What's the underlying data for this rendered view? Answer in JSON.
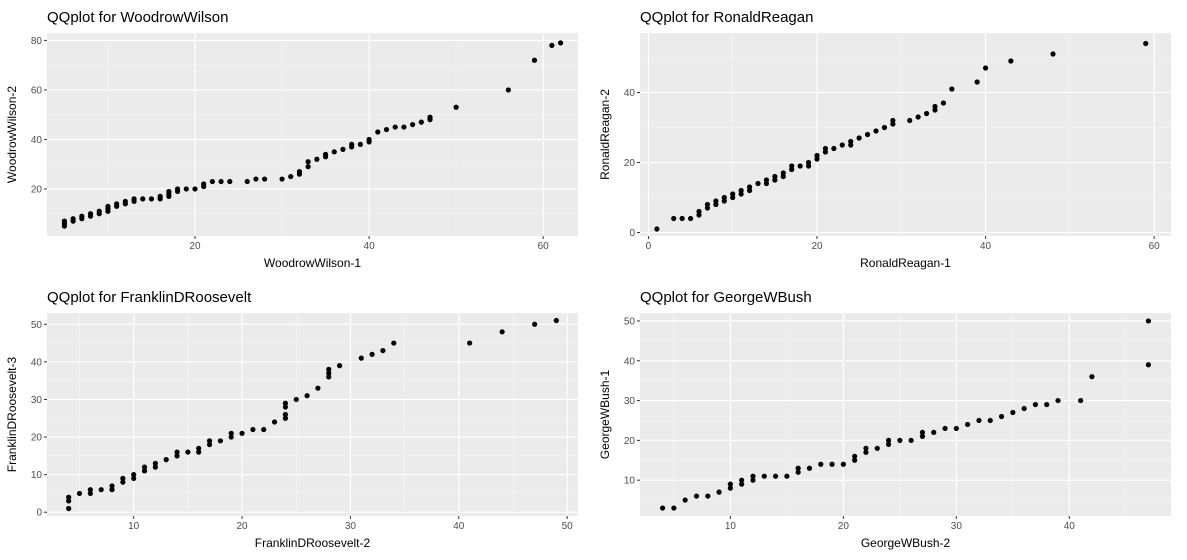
{
  "chart_data": [
    {
      "type": "scatter",
      "title": "QQplot for WoodrowWilson",
      "xlabel": "WoodrowWilson-1",
      "ylabel": "WoodrowWilson-2",
      "xlim": [
        3,
        64
      ],
      "ylim": [
        1,
        83
      ],
      "xticks": [
        20,
        40,
        60
      ],
      "yticks": [
        20,
        40,
        60,
        80
      ],
      "grid": true,
      "points": [
        [
          5,
          5
        ],
        [
          5,
          6
        ],
        [
          5,
          7
        ],
        [
          6,
          7
        ],
        [
          6,
          8
        ],
        [
          7,
          8
        ],
        [
          7,
          9
        ],
        [
          8,
          9
        ],
        [
          8,
          10
        ],
        [
          9,
          10
        ],
        [
          9,
          11
        ],
        [
          10,
          11
        ],
        [
          10,
          12
        ],
        [
          10,
          13
        ],
        [
          11,
          13
        ],
        [
          11,
          14
        ],
        [
          12,
          14
        ],
        [
          12,
          15
        ],
        [
          13,
          15
        ],
        [
          13,
          16
        ],
        [
          14,
          16
        ],
        [
          15,
          16
        ],
        [
          16,
          16
        ],
        [
          16,
          17
        ],
        [
          17,
          17
        ],
        [
          17,
          18
        ],
        [
          17,
          19
        ],
        [
          18,
          19
        ],
        [
          18,
          20
        ],
        [
          19,
          20
        ],
        [
          20,
          20
        ],
        [
          21,
          21
        ],
        [
          21,
          22
        ],
        [
          22,
          23
        ],
        [
          23,
          23
        ],
        [
          24,
          23
        ],
        [
          26,
          23
        ],
        [
          27,
          24
        ],
        [
          28,
          24
        ],
        [
          30,
          24
        ],
        [
          31,
          25
        ],
        [
          32,
          26
        ],
        [
          32,
          27
        ],
        [
          33,
          29
        ],
        [
          33,
          31
        ],
        [
          34,
          32
        ],
        [
          35,
          33
        ],
        [
          35,
          34
        ],
        [
          36,
          35
        ],
        [
          37,
          36
        ],
        [
          38,
          37
        ],
        [
          38,
          38
        ],
        [
          39,
          38
        ],
        [
          40,
          39
        ],
        [
          40,
          40
        ],
        [
          41,
          43
        ],
        [
          42,
          44
        ],
        [
          43,
          45
        ],
        [
          44,
          45
        ],
        [
          45,
          46
        ],
        [
          46,
          47
        ],
        [
          47,
          48
        ],
        [
          47,
          49
        ],
        [
          50,
          53
        ],
        [
          56,
          60
        ],
        [
          59,
          72
        ],
        [
          61,
          78
        ],
        [
          62,
          79
        ]
      ]
    },
    {
      "type": "scatter",
      "title": "QQplot for RonaldReagan",
      "xlabel": "RonaldReagan-1",
      "ylabel": "RonaldReagan-2",
      "xlim": [
        -1,
        62
      ],
      "ylim": [
        -1,
        57
      ],
      "xticks": [
        0,
        20,
        40,
        60
      ],
      "yticks": [
        0,
        20,
        40
      ],
      "grid": true,
      "points": [
        [
          1,
          1
        ],
        [
          3,
          4
        ],
        [
          4,
          4
        ],
        [
          5,
          4
        ],
        [
          6,
          5
        ],
        [
          6,
          6
        ],
        [
          7,
          7
        ],
        [
          7,
          8
        ],
        [
          8,
          8
        ],
        [
          8,
          9
        ],
        [
          9,
          9
        ],
        [
          9,
          10
        ],
        [
          10,
          10
        ],
        [
          10,
          11
        ],
        [
          11,
          11
        ],
        [
          11,
          12
        ],
        [
          12,
          12
        ],
        [
          12,
          13
        ],
        [
          13,
          14
        ],
        [
          14,
          14
        ],
        [
          14,
          15
        ],
        [
          15,
          15
        ],
        [
          15,
          16
        ],
        [
          16,
          16
        ],
        [
          16,
          17
        ],
        [
          17,
          18
        ],
        [
          17,
          19
        ],
        [
          18,
          19
        ],
        [
          19,
          19
        ],
        [
          19,
          20
        ],
        [
          20,
          21
        ],
        [
          20,
          22
        ],
        [
          21,
          23
        ],
        [
          21,
          24
        ],
        [
          22,
          24
        ],
        [
          23,
          25
        ],
        [
          24,
          25
        ],
        [
          24,
          26
        ],
        [
          25,
          27
        ],
        [
          26,
          28
        ],
        [
          27,
          29
        ],
        [
          28,
          30
        ],
        [
          29,
          31
        ],
        [
          29,
          32
        ],
        [
          31,
          32
        ],
        [
          32,
          33
        ],
        [
          33,
          34
        ],
        [
          34,
          35
        ],
        [
          34,
          36
        ],
        [
          35,
          37
        ],
        [
          36,
          41
        ],
        [
          39,
          43
        ],
        [
          40,
          47
        ],
        [
          43,
          49
        ],
        [
          48,
          51
        ],
        [
          59,
          54
        ]
      ]
    },
    {
      "type": "scatter",
      "title": "QQplot for FranklinDRoosevelt",
      "xlabel": "FranklinDRoosevelt-2",
      "ylabel": "FranklinDRoosevelt-3",
      "xlim": [
        2,
        51
      ],
      "ylim": [
        -1,
        53
      ],
      "xticks": [
        10,
        20,
        30,
        40,
        50
      ],
      "yticks": [
        0,
        10,
        20,
        30,
        40,
        50
      ],
      "grid": true,
      "points": [
        [
          4,
          1
        ],
        [
          4,
          3
        ],
        [
          4,
          4
        ],
        [
          5,
          5
        ],
        [
          6,
          5
        ],
        [
          6,
          6
        ],
        [
          7,
          6
        ],
        [
          8,
          6
        ],
        [
          8,
          7
        ],
        [
          9,
          8
        ],
        [
          9,
          9
        ],
        [
          10,
          9
        ],
        [
          10,
          10
        ],
        [
          11,
          11
        ],
        [
          11,
          12
        ],
        [
          12,
          12
        ],
        [
          12,
          13
        ],
        [
          13,
          14
        ],
        [
          14,
          15
        ],
        [
          14,
          16
        ],
        [
          15,
          16
        ],
        [
          16,
          16
        ],
        [
          16,
          17
        ],
        [
          17,
          18
        ],
        [
          17,
          19
        ],
        [
          18,
          19
        ],
        [
          19,
          20
        ],
        [
          19,
          21
        ],
        [
          20,
          21
        ],
        [
          21,
          22
        ],
        [
          22,
          22
        ],
        [
          23,
          24
        ],
        [
          24,
          25
        ],
        [
          24,
          26
        ],
        [
          24,
          28
        ],
        [
          24,
          29
        ],
        [
          25,
          30
        ],
        [
          26,
          31
        ],
        [
          27,
          33
        ],
        [
          28,
          36
        ],
        [
          28,
          37
        ],
        [
          28,
          38
        ],
        [
          29,
          39
        ],
        [
          31,
          41
        ],
        [
          32,
          42
        ],
        [
          33,
          43
        ],
        [
          34,
          45
        ],
        [
          41,
          45
        ],
        [
          44,
          48
        ],
        [
          47,
          50
        ],
        [
          49,
          51
        ]
      ]
    },
    {
      "type": "scatter",
      "title": "QQplot for GeorgeWBush",
      "xlabel": "GeorgeWBush-2",
      "ylabel": "GeorgeWBush-1",
      "xlim": [
        2,
        49
      ],
      "ylim": [
        1,
        52
      ],
      "xticks": [
        10,
        20,
        30,
        40
      ],
      "yticks": [
        10,
        20,
        30,
        40,
        50
      ],
      "grid": true,
      "points": [
        [
          4,
          3
        ],
        [
          5,
          3
        ],
        [
          6,
          5
        ],
        [
          7,
          6
        ],
        [
          8,
          6
        ],
        [
          9,
          7
        ],
        [
          10,
          8
        ],
        [
          10,
          9
        ],
        [
          11,
          9
        ],
        [
          11,
          10
        ],
        [
          12,
          10
        ],
        [
          12,
          11
        ],
        [
          13,
          11
        ],
        [
          14,
          11
        ],
        [
          15,
          11
        ],
        [
          16,
          12
        ],
        [
          16,
          13
        ],
        [
          17,
          13
        ],
        [
          18,
          14
        ],
        [
          19,
          14
        ],
        [
          20,
          14
        ],
        [
          21,
          15
        ],
        [
          21,
          16
        ],
        [
          22,
          17
        ],
        [
          22,
          18
        ],
        [
          23,
          18
        ],
        [
          24,
          19
        ],
        [
          24,
          20
        ],
        [
          25,
          20
        ],
        [
          26,
          20
        ],
        [
          27,
          21
        ],
        [
          27,
          22
        ],
        [
          28,
          22
        ],
        [
          29,
          23
        ],
        [
          30,
          23
        ],
        [
          31,
          24
        ],
        [
          32,
          25
        ],
        [
          33,
          25
        ],
        [
          34,
          26
        ],
        [
          35,
          27
        ],
        [
          36,
          28
        ],
        [
          37,
          29
        ],
        [
          38,
          29
        ],
        [
          39,
          30
        ],
        [
          41,
          30
        ],
        [
          42,
          36
        ],
        [
          47,
          39
        ],
        [
          47,
          50
        ]
      ]
    }
  ]
}
